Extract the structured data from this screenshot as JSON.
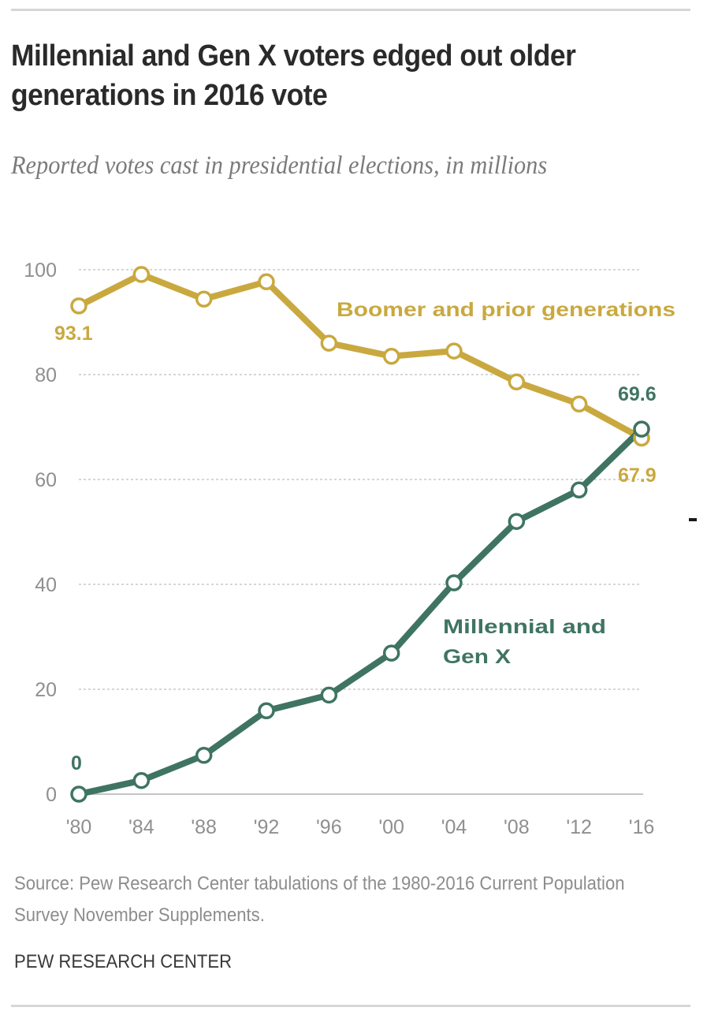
{
  "header": {
    "title": "Millennial and Gen X voters edged out older generations in 2016 vote",
    "subtitle": "Reported votes cast in presidential elections, in millions"
  },
  "footer": {
    "source": "Source: Pew Research Center tabulations of the 1980-2016 Current Population Survey November Supplements.",
    "brand": "PEW RESEARCH CENTER"
  },
  "colors": {
    "boomer": "#c9a93f",
    "millennial": "#3f7462",
    "axis_text": "#8f8f8f",
    "grid": "#c8c8c8"
  },
  "chart_data": {
    "type": "line",
    "title": "Millennial and Gen X voters edged out older generations in 2016 vote",
    "subtitle": "Reported votes cast in presidential elections, in millions",
    "xlabel": "",
    "ylabel": "",
    "categories": [
      "'80",
      "'84",
      "'88",
      "'92",
      "'96",
      "'00",
      "'04",
      "'08",
      "'12",
      "'16"
    ],
    "x": [
      1980,
      1984,
      1988,
      1992,
      1996,
      2000,
      2004,
      2008,
      2012,
      2016
    ],
    "ylim": [
      0,
      100
    ],
    "yticks": [
      0,
      20,
      40,
      60,
      80,
      100
    ],
    "ytick_labels": [
      "0",
      "20",
      "40",
      "60",
      "80",
      "100"
    ],
    "grid": true,
    "series": [
      {
        "name": "Boomer and prior generations",
        "color": "#c9a93f",
        "values": [
          93.1,
          99.1,
          94.4,
          97.7,
          86.0,
          83.5,
          84.5,
          78.6,
          74.4,
          67.9
        ],
        "data_labels": [
          {
            "index": 0,
            "text": "93.1"
          },
          {
            "index": 9,
            "text": "67.9"
          }
        ]
      },
      {
        "name": "Millennial and Gen X",
        "label_lines": [
          "Millennial and",
          "Gen X"
        ],
        "color": "#3f7462",
        "values": [
          0,
          2.6,
          7.4,
          15.9,
          18.9,
          26.9,
          40.3,
          52.0,
          58.0,
          69.6
        ],
        "data_labels": [
          {
            "index": 0,
            "text": "0"
          },
          {
            "index": 9,
            "text": "69.6"
          }
        ]
      }
    ]
  }
}
